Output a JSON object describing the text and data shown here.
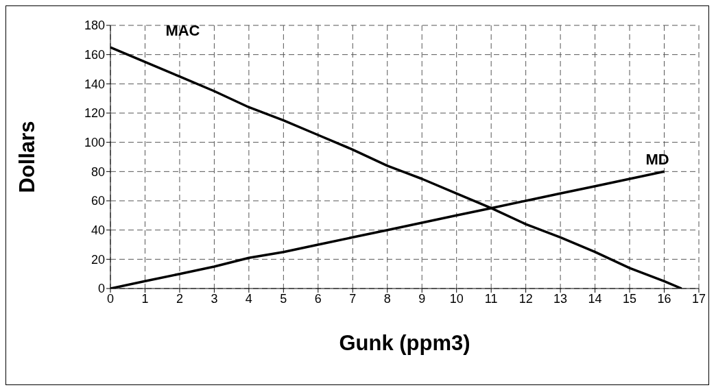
{
  "chart_data": {
    "type": "line",
    "xlabel": "Gunk (ppm3)",
    "ylabel": "Dollars",
    "xlim": [
      0,
      17
    ],
    "xticks": [
      0,
      1,
      2,
      3,
      4,
      5,
      6,
      7,
      8,
      9,
      10,
      11,
      12,
      13,
      14,
      15,
      16,
      17
    ],
    "ylim": [
      0,
      180
    ],
    "yticks": [
      0,
      20,
      40,
      60,
      80,
      100,
      120,
      140,
      160,
      180
    ],
    "grid": true,
    "marker": "none",
    "line_style": "solid",
    "series": [
      {
        "name": "MAC",
        "color": "#000000",
        "x": [
          0,
          1,
          2,
          3,
          4,
          5,
          6,
          7,
          8,
          9,
          10,
          11,
          12,
          13,
          14,
          15,
          16,
          16.5
        ],
        "values": [
          165,
          155,
          145,
          135,
          124,
          115,
          105,
          95,
          84,
          75,
          65,
          55,
          44,
          35,
          25,
          14,
          5,
          0
        ]
      },
      {
        "name": "MD",
        "color": "#000000",
        "x": [
          0,
          1,
          2,
          3,
          4,
          5,
          6,
          7,
          8,
          9,
          10,
          11,
          12,
          13,
          14,
          15,
          16
        ],
        "values": [
          0,
          5,
          10,
          15,
          21,
          25,
          30,
          35,
          40,
          45,
          50,
          55,
          60,
          65,
          70,
          75,
          80
        ]
      }
    ]
  }
}
